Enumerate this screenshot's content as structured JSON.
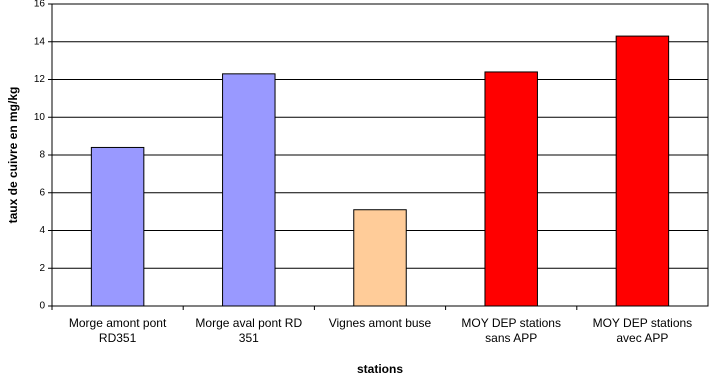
{
  "chart_data": {
    "type": "bar",
    "categories": [
      "Morge amont pont RD351",
      "Morge aval pont RD 351",
      "Vignes amont buse",
      "MOY DEP stations sans APP",
      "MOY DEP stations avec APP"
    ],
    "values": [
      8.4,
      12.3,
      5.1,
      12.4,
      14.3
    ],
    "colors": [
      "#9999ff",
      "#9999ff",
      "#ffcc99",
      "#ff0000",
      "#ff0000"
    ],
    "ylim": [
      0,
      16
    ],
    "yticks": [
      0,
      2,
      4,
      6,
      8,
      10,
      12,
      14,
      16
    ],
    "grid": true,
    "xlabel": "stations",
    "ylabel": "taux de cuivre en mg/kg"
  }
}
